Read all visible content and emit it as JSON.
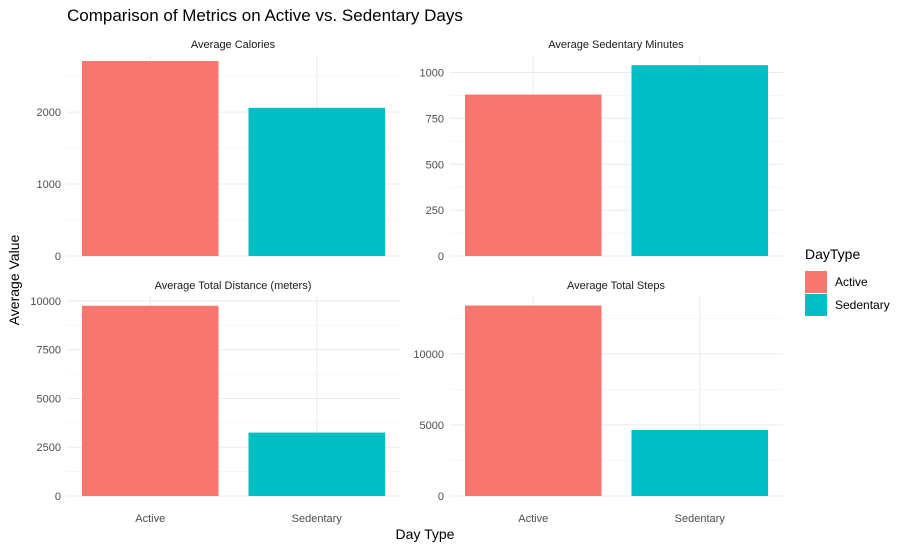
{
  "title": "Comparison of Metrics on Active vs. Sedentary Days",
  "xlabel": "Day Type",
  "ylabel": "Average Value",
  "legend": {
    "title": "DayType",
    "items": [
      {
        "label": "Active",
        "color": "#F8766D"
      },
      {
        "label": "Sedentary",
        "color": "#00BFC4"
      }
    ]
  },
  "chart_data": [
    {
      "type": "bar",
      "title": "Average Calories",
      "categories": [
        "Active",
        "Sedentary"
      ],
      "values": [
        2710,
        2060
      ],
      "ylim": [
        0,
        2780
      ],
      "yticks": [
        0,
        1000,
        2000
      ],
      "ytick_labels": [
        "0",
        "1000",
        "2000"
      ]
    },
    {
      "type": "bar",
      "title": "Average Sedentary Minutes",
      "categories": [
        "Active",
        "Sedentary"
      ],
      "values": [
        880,
        1040
      ],
      "ylim": [
        0,
        1090
      ],
      "yticks": [
        0,
        250,
        500,
        750,
        1000
      ],
      "ytick_labels": [
        "0",
        "250",
        "500",
        "750",
        "1000"
      ]
    },
    {
      "type": "bar",
      "title": "Average Total Distance (meters)",
      "categories": [
        "Active",
        "Sedentary"
      ],
      "values": [
        9750,
        3250
      ],
      "ylim": [
        0,
        10250
      ],
      "yticks": [
        0,
        2500,
        5000,
        7500,
        10000
      ],
      "ytick_labels": [
        "0",
        "2500",
        "5000",
        "7500",
        "10000"
      ]
    },
    {
      "type": "bar",
      "title": "Average Total Steps",
      "categories": [
        "Active",
        "Sedentary"
      ],
      "values": [
        13400,
        4650
      ],
      "ylim": [
        0,
        14070
      ],
      "yticks": [
        0,
        5000,
        10000
      ],
      "ytick_labels": [
        "0",
        "5000",
        "10000"
      ]
    }
  ]
}
